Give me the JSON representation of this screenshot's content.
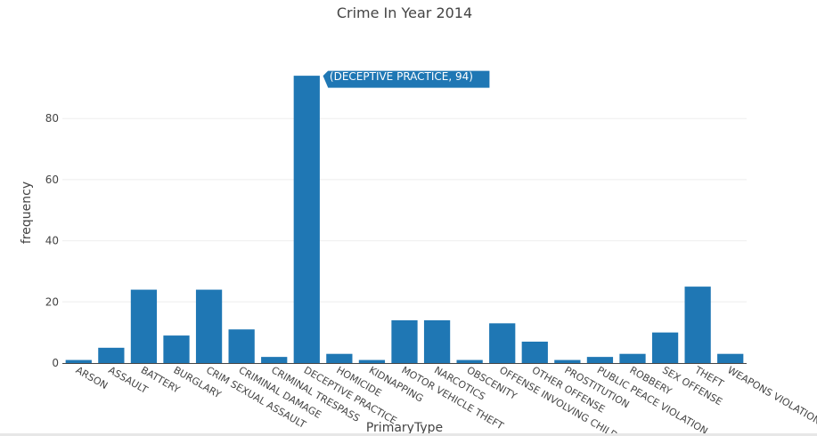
{
  "chart_data": {
    "type": "bar",
    "title": "Crime In Year 2014",
    "xlabel": "PrimaryType",
    "ylabel": "frequency",
    "categories": [
      "ARSON",
      "ASSAULT",
      "BATTERY",
      "BURGLARY",
      "CRIM SEXUAL ASSAULT",
      "CRIMINAL DAMAGE",
      "CRIMINAL TRESPASS",
      "DECEPTIVE PRACTICE",
      "HOMICIDE",
      "KIDNAPPING",
      "MOTOR VEHICLE THEFT",
      "NARCOTICS",
      "OBSCENITY",
      "OFFENSE INVOLVING CHILDREN",
      "OTHER OFFENSE",
      "PROSTITUTION",
      "PUBLIC PEACE VIOLATION",
      "ROBBERY",
      "SEX OFFENSE",
      "THEFT",
      "WEAPONS VIOLATION"
    ],
    "values": [
      1,
      5,
      24,
      9,
      24,
      11,
      2,
      94,
      3,
      1,
      14,
      14,
      1,
      13,
      7,
      1,
      2,
      3,
      10,
      25,
      3
    ],
    "ylim": [
      0,
      98
    ],
    "yticks": [
      0,
      20,
      40,
      60,
      80
    ],
    "grid": true,
    "bar_color": "#1f77b4",
    "hover_label": "(DECEPTIVE PRACTICE, 94)"
  }
}
